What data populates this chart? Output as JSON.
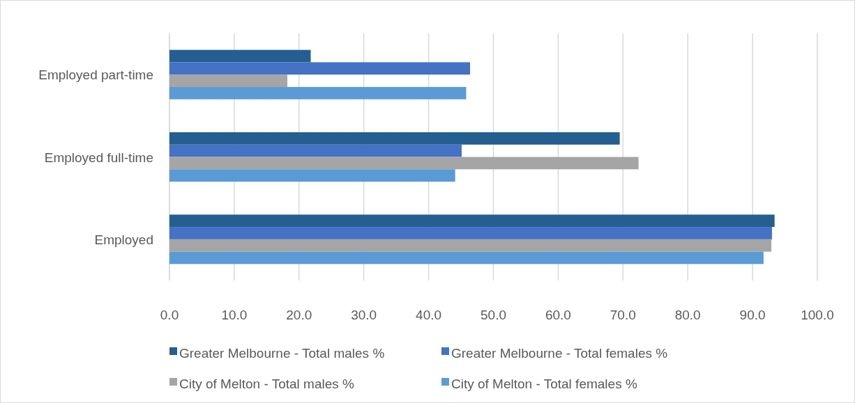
{
  "chart_data": {
    "type": "bar",
    "orientation": "horizontal",
    "categories": [
      "Employed part-time",
      "Employed full-time",
      "Employed"
    ],
    "series": [
      {
        "name": "Greater Melbourne - Total males %",
        "color": "#255e91",
        "values": [
          21.8,
          69.5,
          93.4
        ]
      },
      {
        "name": "Greater Melbourne - Total females %",
        "color": "#4472c4",
        "values": [
          46.4,
          45.1,
          93.0
        ]
      },
      {
        "name": "City of Melton - Total males %",
        "color": "#a5a5a5",
        "values": [
          18.2,
          72.4,
          92.9
        ]
      },
      {
        "name": "City of Melton - Total females %",
        "color": "#5b9bd5",
        "values": [
          45.8,
          44.1,
          91.7
        ]
      }
    ],
    "xlim": [
      0,
      100
    ],
    "xticks": [
      {
        "value": 0,
        "label": "0.0"
      },
      {
        "value": 10,
        "label": "10.0"
      },
      {
        "value": 20,
        "label": "20.0"
      },
      {
        "value": 30,
        "label": "30.0"
      },
      {
        "value": 40,
        "label": "40.0"
      },
      {
        "value": 50,
        "label": "50.0"
      },
      {
        "value": 60,
        "label": "60.0"
      },
      {
        "value": 70,
        "label": "70.0"
      },
      {
        "value": 80,
        "label": "80.0"
      },
      {
        "value": 90,
        "label": "90.0"
      },
      {
        "value": 100,
        "label": "100.0"
      }
    ],
    "grid": "x",
    "legend": "bottom"
  }
}
